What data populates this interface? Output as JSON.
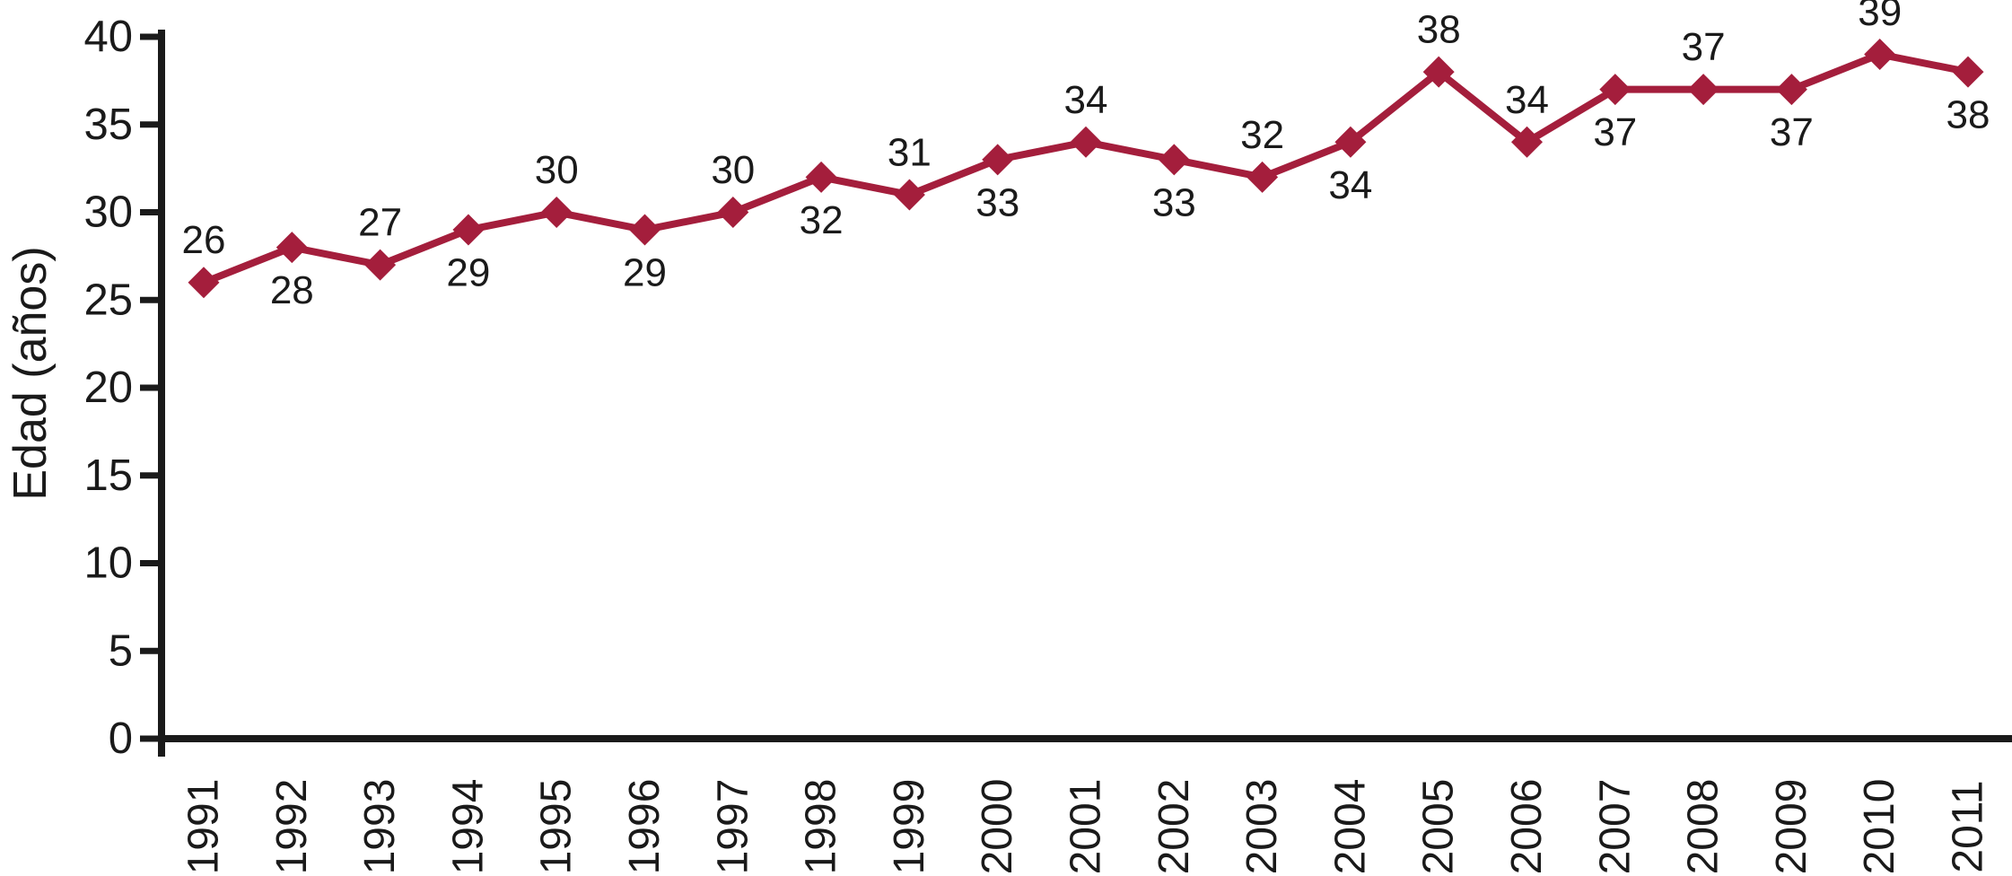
{
  "figure": {
    "background": "#ffffff",
    "axis_color": "#1a1a1a",
    "text_color": "#1a1a1a"
  },
  "chart_data": {
    "type": "line",
    "title": "",
    "xlabel": "",
    "ylabel": "Edad (años)",
    "categories": [
      "1991",
      "1992",
      "1993",
      "1994",
      "1995",
      "1996",
      "1997",
      "1998",
      "1999",
      "2000",
      "2001",
      "2002",
      "2003",
      "2004",
      "2005",
      "2006",
      "2007",
      "2008",
      "2009",
      "2010",
      "2011"
    ],
    "series": [
      {
        "name": "Edad",
        "color": "#a41e3c",
        "marker": "diamond",
        "values": [
          26,
          28,
          27,
          29,
          30,
          29,
          30,
          32,
          31,
          33,
          34,
          33,
          32,
          34,
          38,
          34,
          37,
          37,
          37,
          39,
          38
        ],
        "data_label_positions": [
          "above",
          "below",
          "above",
          "below",
          "above",
          "below",
          "above",
          "below",
          "above",
          "below",
          "above",
          "below",
          "above",
          "below",
          "above",
          "above",
          "below",
          "above",
          "below",
          "above",
          "below"
        ]
      }
    ],
    "yticks": [
      0,
      5,
      10,
      15,
      20,
      25,
      30,
      35,
      40
    ],
    "ylim": [
      0,
      40
    ],
    "grid": false,
    "legend_position": "none",
    "data_labels": true
  }
}
